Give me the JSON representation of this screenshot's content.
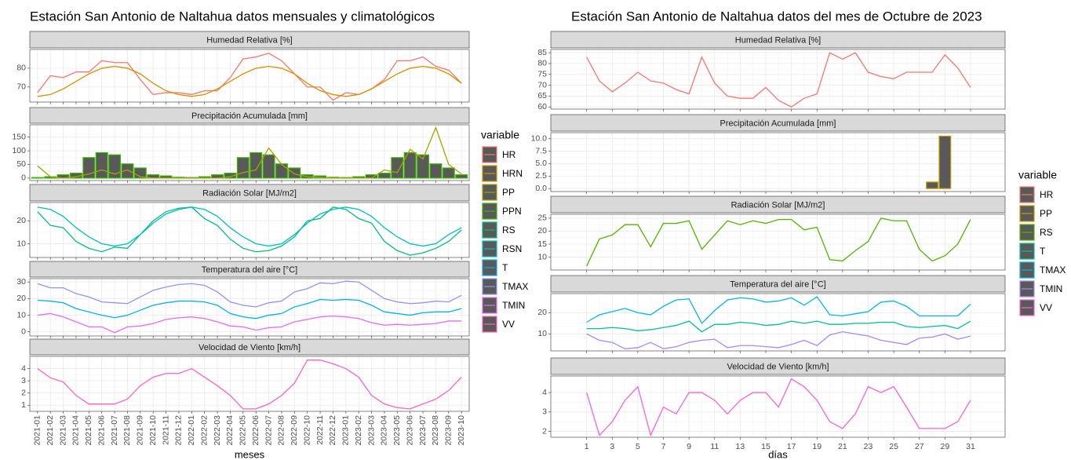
{
  "chart_data": [
    {
      "type": "line",
      "title": "Estación San Antonio de Naltahua datos mensuales y climatológicos",
      "x_label": "meses",
      "legend_title": "variable",
      "categories": [
        "2021-01",
        "2021-02",
        "2021-03",
        "2021-04",
        "2021-05",
        "2021-06",
        "2021-07",
        "2021-08",
        "2021-09",
        "2021-10",
        "2021-11",
        "2021-12",
        "2022-01",
        "2022-02",
        "2022-03",
        "2022-04",
        "2022-05",
        "2022-06",
        "2022-07",
        "2022-08",
        "2022-09",
        "2022-10",
        "2022-11",
        "2022-12",
        "2023-01",
        "2023-02",
        "2023-03",
        "2023-04",
        "2023-05",
        "2023-06",
        "2023-07",
        "2023-08",
        "2023-09",
        "2023-10"
      ],
      "panels": [
        {
          "title": "Humedad Relativa [%]",
          "ylim": [
            62,
            90
          ],
          "yticks": [
            70,
            80
          ],
          "series": [
            {
              "name": "HR",
              "color": "#F8766D",
              "type": "line",
              "values": [
                67,
                76,
                75,
                78,
                78,
                84,
                83,
                83,
                74,
                66,
                67,
                67,
                66,
                68,
                68,
                75,
                85,
                86,
                88,
                84,
                77,
                70,
                70,
                63,
                67,
                66,
                69,
                74,
                84,
                84,
                86,
                81,
                79,
                72
              ]
            },
            {
              "name": "HRN",
              "color": "#D89000",
              "type": "line",
              "values": [
                65,
                66,
                69,
                73,
                77,
                80,
                81,
                80,
                77,
                72,
                68,
                66,
                65,
                66,
                69,
                73,
                77,
                80,
                81,
                80,
                77,
                72,
                68,
                66,
                65,
                66,
                69,
                73,
                77,
                80,
                81,
                80,
                77,
                72
              ]
            }
          ]
        },
        {
          "title": "Precipitación Acumulada [mm]",
          "ylim": [
            -9,
            195
          ],
          "yticks": [
            0,
            50,
            100,
            150
          ],
          "series": [
            {
              "name": "PP",
              "color": "#A3A500",
              "type": "line",
              "values": [
                45,
                5,
                0,
                5,
                15,
                30,
                15,
                30,
                5,
                0,
                0,
                0,
                0,
                0,
                0,
                5,
                20,
                30,
                110,
                50,
                15,
                5,
                2,
                0,
                0,
                0,
                0,
                30,
                20,
                105,
                70,
                185,
                50,
                15
              ]
            },
            {
              "name": "PPN",
              "color": "#39B600",
              "type": "bar",
              "values": [
                2,
                5,
                12,
                18,
                75,
                93,
                85,
                52,
                37,
                12,
                8,
                3,
                2,
                5,
                12,
                18,
                75,
                93,
                85,
                52,
                37,
                12,
                8,
                3,
                2,
                5,
                12,
                18,
                75,
                93,
                85,
                52,
                37,
                12
              ]
            }
          ]
        },
        {
          "title": "Radiación Solar [MJ/m2]",
          "ylim": [
            4,
            28
          ],
          "yticks": [
            10,
            20
          ],
          "series": [
            {
              "name": "RS",
              "color": "#00BF7D",
              "type": "line",
              "values": [
                24,
                18,
                17,
                11,
                8,
                6.5,
                8.5,
                8,
                14,
                20,
                24,
                25.5,
                26,
                21,
                18,
                12,
                8,
                6.5,
                7,
                9,
                13,
                20,
                21,
                26,
                25,
                21,
                19,
                11,
                7,
                5,
                6,
                8,
                11,
                16
              ]
            },
            {
              "name": "RSN",
              "color": "#00BFC4",
              "type": "line",
              "values": [
                26,
                25,
                22,
                17,
                13,
                10,
                9,
                10,
                14,
                19,
                23,
                25,
                26,
                25,
                22,
                17,
                13,
                10,
                9,
                10,
                14,
                19,
                23,
                25,
                26,
                25,
                22,
                17,
                13,
                10,
                9,
                10,
                14,
                17
              ]
            }
          ]
        },
        {
          "title": "Temperatura del aire [°C]",
          "ylim": [
            -2.5,
            32
          ],
          "yticks": [
            0,
            10,
            20,
            30
          ],
          "series": [
            {
              "name": "T",
              "color": "#00B0F6",
              "type": "line",
              "values": [
                19,
                18.5,
                17.5,
                14,
                12,
                10,
                8.5,
                10,
                13,
                16,
                17.5,
                18.5,
                18.5,
                18,
                16,
                11,
                9,
                8,
                10,
                11,
                15,
                17,
                19.5,
                19,
                19.5,
                19,
                16,
                12,
                11,
                10,
                11.5,
                12,
                12,
                14
              ]
            },
            {
              "name": "TMAX",
              "color": "#9590FF",
              "type": "line",
              "values": [
                29,
                26.5,
                26.5,
                23,
                21,
                18,
                17.5,
                17,
                21,
                25,
                27,
                28.5,
                29,
                28,
                24,
                18,
                16,
                15,
                17.5,
                18.5,
                24,
                26,
                29.5,
                29,
                30.5,
                30,
                25,
                20,
                18,
                17,
                17.5,
                18.5,
                18,
                22
              ]
            },
            {
              "name": "TMIN",
              "color": "#E76BF3",
              "type": "line",
              "values": [
                10,
                11,
                9,
                6,
                3,
                3,
                -0.5,
                3,
                3.5,
                5,
                7.5,
                8.5,
                9,
                8,
                6,
                3.5,
                3,
                1,
                2.5,
                3,
                6,
                7.5,
                9,
                9.5,
                9,
                8,
                5.5,
                4,
                4.5,
                4,
                4.5,
                5,
                6.5,
                6.5
              ]
            }
          ]
        },
        {
          "title": "Velocidad de Viento [km/h]",
          "ylim": [
            0.5,
            5
          ],
          "yticks": [
            1,
            2,
            3,
            4
          ],
          "series": [
            {
              "name": "VV",
              "color": "#FF62BC",
              "type": "line",
              "values": [
                4,
                3.25,
                2.9,
                1.8,
                1.1,
                1.1,
                1.1,
                1.5,
                2.6,
                3.3,
                3.6,
                3.6,
                4,
                3.3,
                2.6,
                1.8,
                0.7,
                0.7,
                1.1,
                1.8,
                2.8,
                4.7,
                4.7,
                4.4,
                4,
                3.3,
                1.8,
                1.1,
                0.8,
                0.7,
                1.1,
                1.5,
                2.2,
                3.3
              ]
            }
          ]
        }
      ]
    },
    {
      "type": "line",
      "title": "Estación San Antonio de Naltahua datos del mes de Octubre de 2023",
      "x_label": "días",
      "legend_title": "variable",
      "x": [
        1,
        2,
        3,
        4,
        5,
        6,
        7,
        8,
        9,
        10,
        11,
        12,
        13,
        14,
        15,
        16,
        17,
        18,
        19,
        20,
        21,
        22,
        23,
        24,
        25,
        26,
        27,
        28,
        29,
        30,
        31
      ],
      "xlim": [
        -1.8,
        33.7
      ],
      "xticks": [
        1,
        3,
        5,
        7,
        9,
        11,
        13,
        15,
        17,
        19,
        21,
        23,
        25,
        27,
        29,
        31
      ],
      "panels": [
        {
          "title": "Humedad Relativa [%]",
          "ylim": [
            59,
            86.5
          ],
          "yticks": [
            60,
            65,
            70,
            75,
            80,
            85
          ],
          "series": [
            {
              "name": "HR",
              "color": "#F8766D",
              "type": "line",
              "values": [
                83,
                72,
                67,
                71,
                76,
                72,
                71,
                68,
                66,
                83,
                71,
                65,
                64,
                64,
                69,
                63,
                60,
                64,
                66,
                85,
                82,
                85,
                76,
                74,
                73,
                76,
                76,
                76,
                84,
                78,
                69
              ]
            }
          ]
        },
        {
          "title": "Precipitación Acumulada [mm]",
          "ylim": [
            -0.6,
            11.2
          ],
          "yticks": [
            {
              "value": 0,
              "label": "0.0"
            },
            {
              "value": 2.5,
              "label": "2.5"
            },
            {
              "value": 5,
              "label": "5.0"
            },
            {
              "value": 7.5,
              "label": "7.5"
            },
            {
              "value": 10,
              "label": "10.0"
            }
          ],
          "series": [
            {
              "name": "PP",
              "color": "#C49A00",
              "type": "bar",
              "values": [
                0,
                0,
                0,
                0,
                0,
                0,
                0,
                0,
                0,
                0,
                0,
                0,
                0,
                0,
                0,
                0,
                0,
                0,
                0,
                0,
                0,
                0,
                0,
                0,
                0,
                0,
                0,
                1.3,
                10.5,
                0,
                0
              ]
            }
          ]
        },
        {
          "title": "Radiación Solar [MJ/m2]",
          "ylim": [
            5,
            26.5
          ],
          "yticks": [
            10,
            15,
            20,
            25
          ],
          "series": [
            {
              "name": "RS",
              "color": "#53B400",
              "type": "line",
              "values": [
                6.5,
                17,
                18.5,
                22.5,
                22.5,
                14,
                23,
                23,
                24,
                13,
                18.5,
                24,
                22.5,
                24,
                23,
                24.5,
                24.5,
                20.5,
                21.5,
                9,
                8.5,
                12.5,
                16,
                25,
                24,
                24,
                13,
                8.5,
                10.5,
                15,
                24.5
              ]
            }
          ]
        },
        {
          "title": "Temperatura del aire [°C]",
          "ylim": [
            2,
            29
          ],
          "yticks": [
            10,
            20
          ],
          "series": [
            {
              "name": "T",
              "color": "#00C094",
              "type": "line",
              "values": [
                12.5,
                12.5,
                13,
                12.5,
                11.5,
                12,
                13,
                14,
                16,
                11,
                14.5,
                14.5,
                15.5,
                15,
                14,
                14.5,
                16,
                15,
                16,
                14.5,
                14.5,
                15,
                15,
                15.5,
                15.5,
                13.5,
                13,
                13.5,
                14,
                12.5,
                16
              ]
            },
            {
              "name": "TMAX",
              "color": "#00B6EB",
              "type": "line",
              "values": [
                15.5,
                19,
                20.5,
                22,
                20,
                19,
                23,
                26,
                26.5,
                15,
                21,
                26,
                27,
                26.5,
                25,
                25.5,
                27,
                23.5,
                27.5,
                19,
                18.5,
                19.5,
                20.5,
                25,
                25.5,
                23,
                18.5,
                18.5,
                18.5,
                18.5,
                24
              ]
            },
            {
              "name": "TMIN",
              "color": "#A58AFF",
              "type": "line",
              "values": [
                10,
                7,
                6,
                3,
                3.5,
                6,
                3,
                4,
                6,
                7,
                7.5,
                3.5,
                4.5,
                4.5,
                4,
                3.5,
                5,
                7,
                4.5,
                9.5,
                11,
                10,
                9,
                7,
                6,
                5,
                8,
                8.5,
                10,
                7.5,
                9
              ]
            }
          ]
        },
        {
          "title": "Velocidad de Viento [km/h]",
          "ylim": [
            1.7,
            4.85
          ],
          "yticks": [
            2,
            3,
            4
          ],
          "series": [
            {
              "name": "VV",
              "color": "#FB61D7",
              "type": "line",
              "values": [
                4,
                1.8,
                2.5,
                3.6,
                4.3,
                1.8,
                3.25,
                2.9,
                4,
                4,
                3.6,
                2.9,
                3.6,
                4,
                4,
                3.25,
                4.7,
                4.3,
                3.6,
                2.5,
                2.15,
                2.9,
                4.3,
                4,
                4.3,
                3.25,
                2.15,
                2.15,
                2.15,
                2.5,
                3.6
              ]
            }
          ]
        }
      ]
    }
  ]
}
